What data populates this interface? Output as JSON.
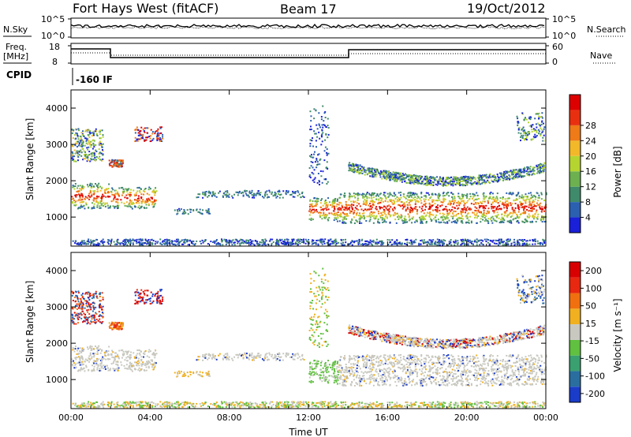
{
  "header": {
    "radar_title": "Fort Hays West (fitACF)",
    "beam_label": "Beam 17",
    "date_label": "19/Oct/2012"
  },
  "top_panels": {
    "nsky": {
      "label": "N.Sky",
      "tick_top": "10^5",
      "tick_bottom": "10^0"
    },
    "nsearch": {
      "label": "N.Search",
      "tick_top": "10^5",
      "tick_bottom": "10^0"
    },
    "freq": {
      "label_line1": "Freq.",
      "label_line2": "[MHz]",
      "tick_top": "18",
      "tick_bottom": "8"
    },
    "nave": {
      "label": "Nave",
      "tick_top": "60",
      "tick_bottom": "0"
    },
    "cpid": {
      "label": "CPID",
      "value_text": "-160 IF"
    }
  },
  "chart_data": [
    {
      "type": "heatmap",
      "name": "power",
      "ylabel": "Slant Range [km]",
      "xlabel": "Time UT",
      "x_ticks": [
        "00:00",
        "04:00",
        "08:00",
        "12:00",
        "16:00",
        "20:00",
        "00:00"
      ],
      "y_ticks": [
        "1000",
        "2000",
        "3000",
        "4000"
      ],
      "colorbar": {
        "label": "Power [dB]",
        "ticks": [
          "4",
          "8",
          "12",
          "16",
          "20",
          "24",
          "28"
        ],
        "colors": [
          "#1a20d8",
          "#2b5fb0",
          "#3f8a6a",
          "#6cb050",
          "#b5d430",
          "#f2b82a",
          "#ef7a18",
          "#e83010",
          "#dd0000"
        ]
      },
      "regions": [
        {
          "t0": 0.0,
          "t1": 1.9,
          "r0": 1250,
          "r1": 1950,
          "level": "high"
        },
        {
          "t0": 1.9,
          "t1": 4.3,
          "r0": 1250,
          "r1": 1850,
          "level": "high"
        },
        {
          "t0": 6.3,
          "t1": 11.8,
          "r0": 1550,
          "r1": 1750,
          "level": "low"
        },
        {
          "t0": 5.2,
          "t1": 7.0,
          "r0": 1100,
          "r1": 1250,
          "level": "low"
        },
        {
          "t0": 12.0,
          "t1": 13.5,
          "r0": 900,
          "r1": 1550,
          "level": "high"
        },
        {
          "t0": 13.5,
          "t1": 24.0,
          "r0": 850,
          "r1": 1700,
          "level": "high"
        }
      ]
    },
    {
      "type": "heatmap",
      "name": "velocity",
      "ylabel": "Slant Range [km]",
      "xlabel": "Time UT",
      "x_ticks": [
        "00:00",
        "04:00",
        "08:00",
        "12:00",
        "16:00",
        "20:00",
        "00:00"
      ],
      "y_ticks": [
        "1000",
        "2000",
        "3000",
        "4000"
      ],
      "colorbar": {
        "label": "Velocity [m s⁻¹]",
        "ticks": [
          "200",
          "100",
          "50",
          "15",
          "-15",
          "-50",
          "-100",
          "-200"
        ],
        "colors": [
          "#1a3cc8",
          "#2a6ea0",
          "#3aa070",
          "#60c040",
          "#c8c8c0",
          "#f0b020",
          "#f07010",
          "#e82810",
          "#d80000"
        ]
      }
    }
  ],
  "xaxis_title": "Time UT"
}
